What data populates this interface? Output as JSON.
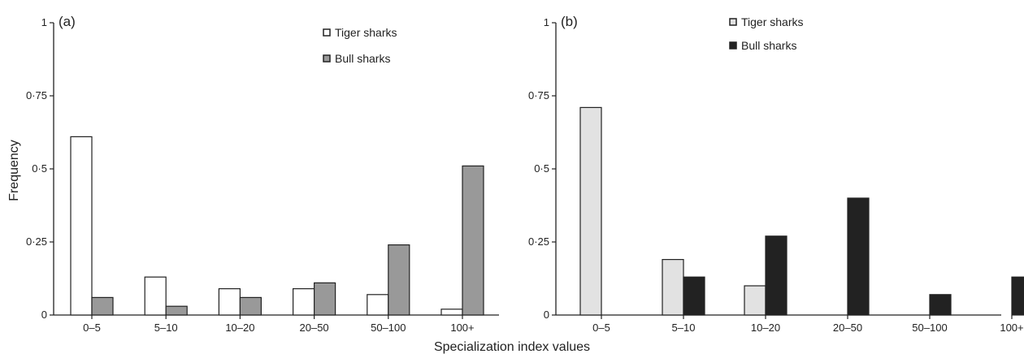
{
  "chart_data": {
    "type": "bar",
    "xlabel": "Specialization index values",
    "ylabel": "Frequency",
    "ylim": [
      0,
      1
    ],
    "y_ticks": [
      "0",
      "0·25",
      "0·5",
      "0·75",
      "1"
    ],
    "categories": [
      "0–5",
      "5–10",
      "10–20",
      "20–50",
      "50–100",
      "100+"
    ],
    "grid": false,
    "legend_placement": "top-right",
    "panels": [
      {
        "label": "(a)",
        "series": [
          {
            "name": "Tiger sharks",
            "values": [
              0.61,
              0.13,
              0.09,
              0.09,
              0.07,
              0.02
            ],
            "color": "#ffffff"
          },
          {
            "name": "Bull sharks",
            "values": [
              0.06,
              0.03,
              0.06,
              0.11,
              0.24,
              0.51
            ],
            "color": "#999999"
          }
        ]
      },
      {
        "label": "(b)",
        "series": [
          {
            "name": "Tiger sharks",
            "values": [
              0.71,
              0.19,
              0.1,
              0,
              0,
              0
            ],
            "color": "#e2e2e2"
          },
          {
            "name": "Bull sharks",
            "values": [
              0,
              0.13,
              0.27,
              0.4,
              0.07,
              0.13
            ],
            "color": "#222222"
          }
        ]
      }
    ]
  }
}
